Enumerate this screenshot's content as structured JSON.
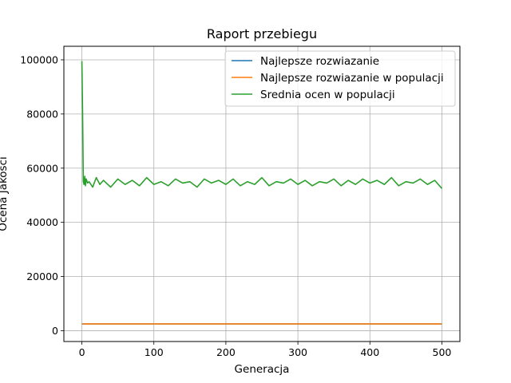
{
  "chart_data": {
    "type": "line",
    "title": "Raport przebiegu",
    "xlabel": "Generacja",
    "ylabel": "Ocena Jakości",
    "xlim": [
      -25,
      525
    ],
    "ylim": [
      -4000,
      105000
    ],
    "xticks": [
      0,
      100,
      200,
      300,
      400,
      500
    ],
    "xtick_labels": [
      "0",
      "100",
      "200",
      "300",
      "400",
      "500"
    ],
    "yticks": [
      0,
      20000,
      40000,
      60000,
      80000,
      100000
    ],
    "ytick_labels": [
      "0",
      "20000",
      "40000",
      "60000",
      "80000",
      "100000"
    ],
    "grid": true,
    "legend_position": "top-right",
    "series": [
      {
        "name": "Najlepsze rozwiazanie",
        "color": "#1f77b4",
        "x": [
          0,
          500
        ],
        "y": [
          2500,
          2500
        ]
      },
      {
        "name": "Najlepsze rozwiazanie w populacji",
        "color": "#ff7f0e",
        "x": [
          0,
          500
        ],
        "y": [
          2500,
          2500
        ]
      },
      {
        "name": "Srednia ocen w populacji",
        "color": "#2ca02c",
        "x": [
          0,
          1,
          2,
          3,
          4,
          5,
          6,
          8,
          10,
          15,
          20,
          25,
          30,
          40,
          50,
          60,
          70,
          80,
          90,
          100,
          110,
          120,
          130,
          140,
          150,
          160,
          170,
          180,
          190,
          200,
          210,
          220,
          230,
          240,
          250,
          260,
          270,
          280,
          290,
          300,
          310,
          320,
          330,
          340,
          350,
          360,
          370,
          380,
          390,
          400,
          410,
          420,
          430,
          440,
          450,
          460,
          470,
          480,
          490,
          500
        ],
        "y": [
          99500,
          80000,
          55000,
          54000,
          57000,
          53500,
          56000,
          54500,
          55000,
          53000,
          56500,
          54000,
          55500,
          53000,
          56000,
          54000,
          55500,
          53500,
          56500,
          54000,
          55000,
          53500,
          56000,
          54500,
          55000,
          53000,
          56000,
          54500,
          55500,
          54000,
          56000,
          53500,
          55000,
          54000,
          56500,
          53500,
          55000,
          54500,
          56000,
          54000,
          55500,
          53500,
          55000,
          54500,
          56000,
          53500,
          55500,
          54000,
          56000,
          54500,
          55500,
          54000,
          56500,
          53500,
          55000,
          54500,
          56000,
          54000,
          55500,
          52500
        ]
      }
    ]
  }
}
